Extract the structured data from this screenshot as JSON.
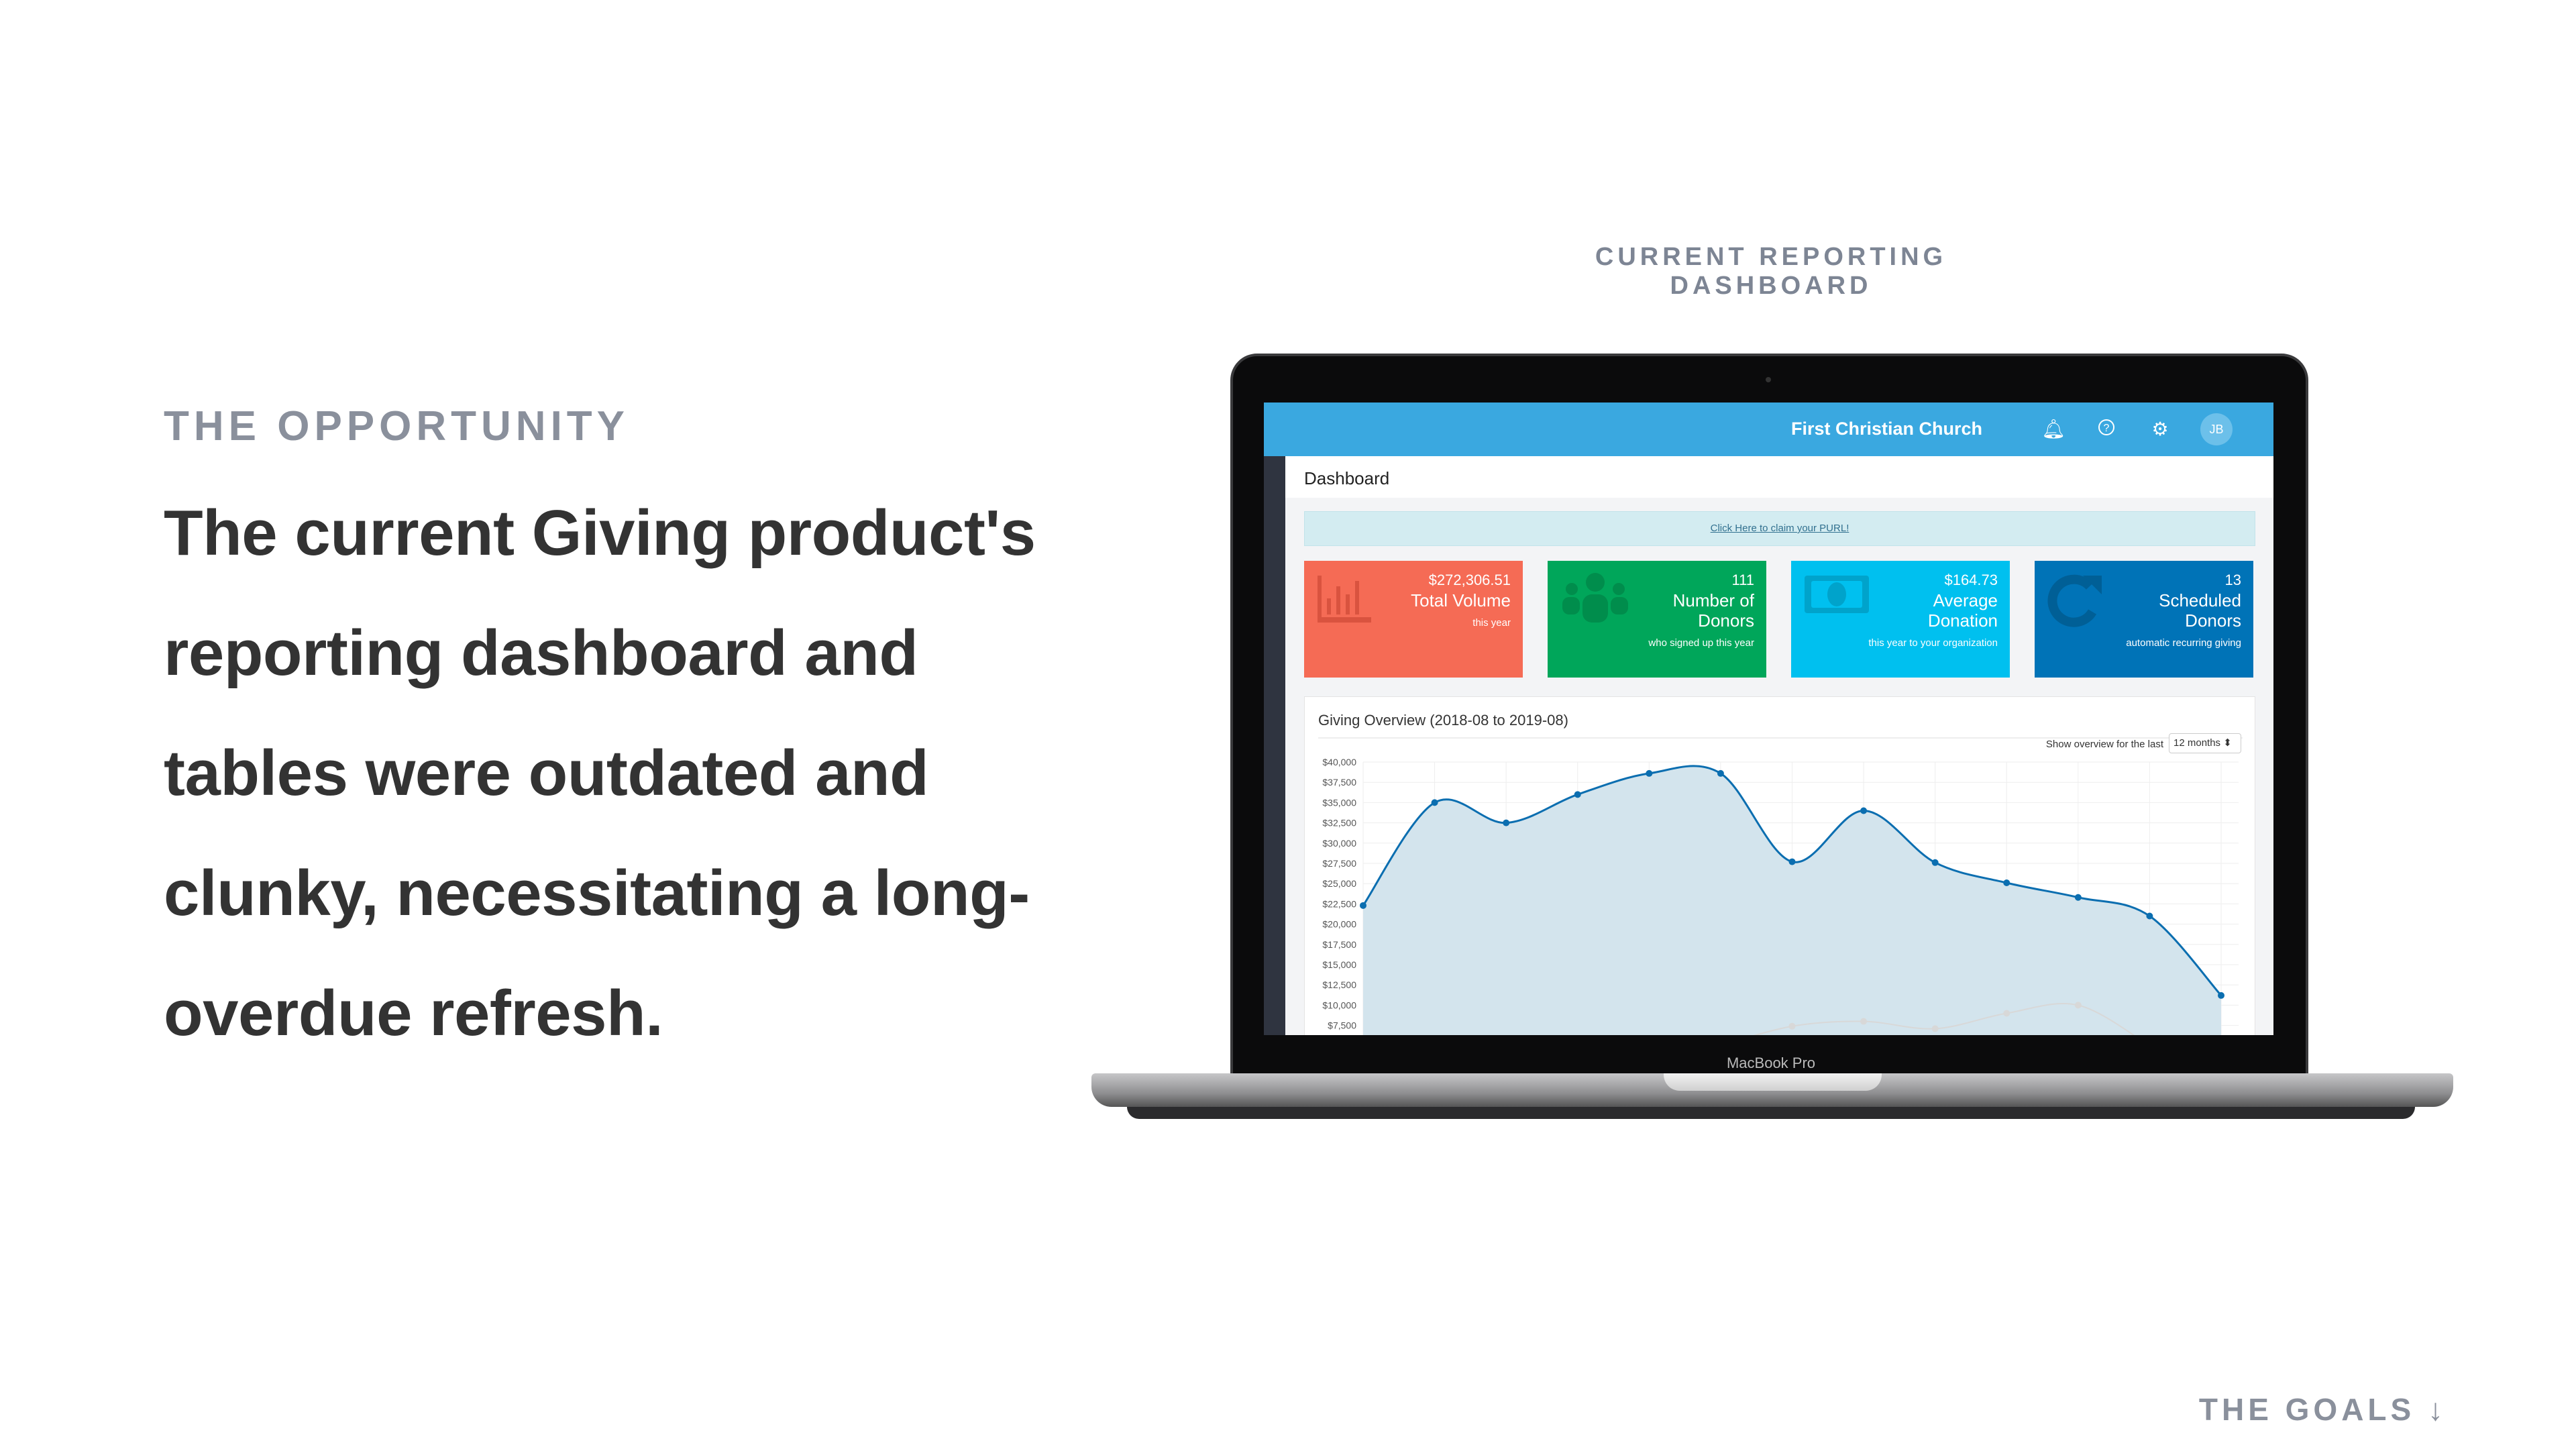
{
  "slide": {
    "section_label": "THE OPPORTUNITY",
    "body_lines": [
      "The current Giving product's",
      "reporting dashboard and",
      "tables were outdated and",
      "clunky, necessitating a long-",
      "overdue refresh."
    ],
    "figure_label": "CURRENT REPORTING DASHBOARD",
    "next_link": "THE GOALS ↓"
  },
  "laptop": {
    "brand_label": "MacBook Pro"
  },
  "app": {
    "header": {
      "org_name": "First Christian Church",
      "icons": [
        "bell-icon",
        "help-icon",
        "gear-icon"
      ],
      "avatar_initials": "JB",
      "color": "#3aa8e0"
    },
    "page_title": "Dashboard",
    "purl_link": "Click Here to claim your PURL!",
    "cards": [
      {
        "value": "$272,306.51",
        "label": "Total Volume",
        "sub": "this year",
        "icon": "bar-chart-icon",
        "color": "#f56b55"
      },
      {
        "value": "111",
        "label": "Number of Donors",
        "sub": "who signed up this year",
        "icon": "users-icon",
        "color": "#00a65a"
      },
      {
        "value": "$164.73",
        "label": "Average Donation",
        "sub": "this year to your organization",
        "icon": "money-icon",
        "color": "#00c0ef"
      },
      {
        "value": "13",
        "label": "Scheduled Donors",
        "sub": "automatic recurring giving",
        "icon": "refresh-icon",
        "color": "#0073b7"
      }
    ],
    "overview": {
      "title": "Giving Overview (2018-08 to 2019-08)",
      "range_label": "Show overview for the last",
      "range_value": "12 months ⬍"
    }
  },
  "chart_data": {
    "type": "area",
    "title": "Giving Overview (2018-08 to 2019-08)",
    "y_ticks": [
      "$40,000",
      "$37,500",
      "$35,000",
      "$32,500",
      "$30,000",
      "$27,500",
      "$25,000",
      "$22,500",
      "$20,000",
      "$17,500",
      "$15,000",
      "$12,500",
      "$10,000",
      "$7,500"
    ],
    "ylim": [
      7500,
      40000
    ],
    "grid": true,
    "series": [
      {
        "values": [
          22300,
          35000,
          32500,
          36000,
          38600,
          38600,
          27700,
          34000,
          27600,
          25100,
          23300,
          21000,
          11200
        ],
        "color": "#0b6eb0",
        "fill": "#d3e4ed"
      },
      {
        "values": [
          null,
          null,
          null,
          null,
          null,
          5000,
          7400,
          8000,
          7100,
          9000,
          10000,
          5000,
          null
        ],
        "color": "#d8d8d8"
      }
    ]
  }
}
